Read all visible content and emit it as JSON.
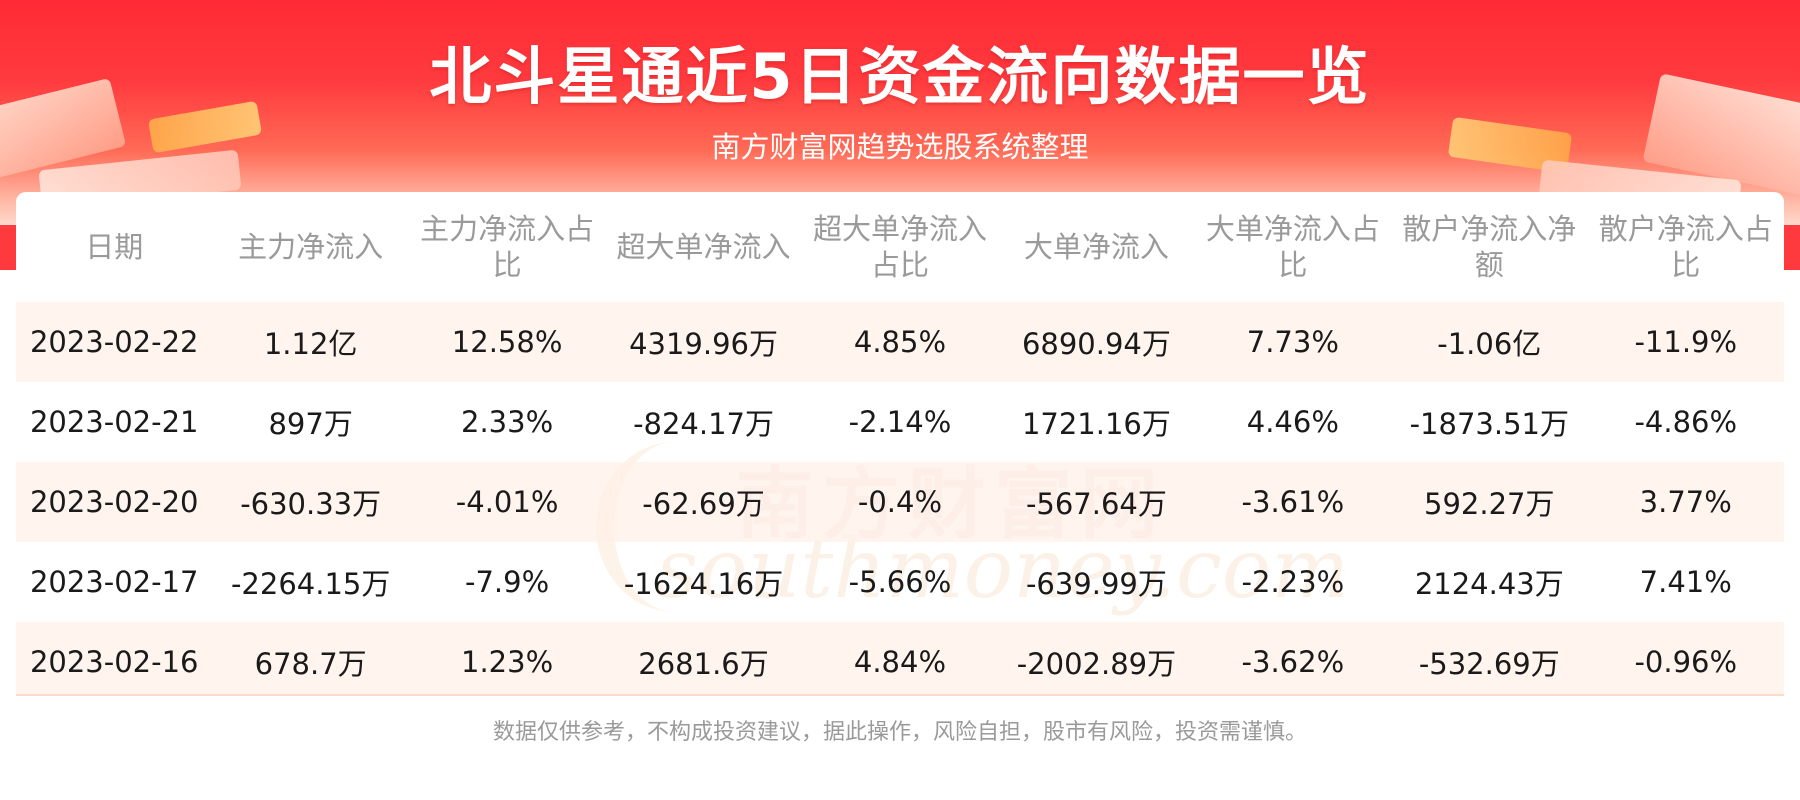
{
  "header": {
    "title": "北斗星通近5日资金流向数据一览",
    "subtitle": "南方财富网趋势选股系统整理"
  },
  "table": {
    "columns": [
      "日期",
      "主力净流入",
      "主力净流入占比",
      "超大单净流入",
      "超大单净流入占比",
      "大单净流入",
      "大单净流入占比",
      "散户净流入净额",
      "散户净流入占比"
    ],
    "rows": [
      [
        "2023-02-22",
        "1.12亿",
        "12.58%",
        "4319.96万",
        "4.85%",
        "6890.94万",
        "7.73%",
        "-1.06亿",
        "-11.9%"
      ],
      [
        "2023-02-21",
        "897万",
        "2.33%",
        "-824.17万",
        "-2.14%",
        "1721.16万",
        "4.46%",
        "-1873.51万",
        "-4.86%"
      ],
      [
        "2023-02-20",
        "-630.33万",
        "-4.01%",
        "-62.69万",
        "-0.4%",
        "-567.64万",
        "-3.61%",
        "592.27万",
        "3.77%"
      ],
      [
        "2023-02-17",
        "-2264.15万",
        "-7.9%",
        "-1624.16万",
        "-5.66%",
        "-639.99万",
        "-2.23%",
        "2124.43万",
        "7.41%"
      ],
      [
        "2023-02-16",
        "678.7万",
        "1.23%",
        "2681.6万",
        "4.84%",
        "-2002.89万",
        "-3.62%",
        "-532.69万",
        "-0.96%"
      ]
    ]
  },
  "watermark": {
    "cn": "南方财富网",
    "en": "southmoney.com"
  },
  "footer": {
    "disclaimer": "数据仅供参考，不构成投资建议，据此操作，风险自担，股市有风险，投资需谨慎。"
  },
  "colors": {
    "banner_red": "#ff2a35",
    "row_stripe": "#fff0e8",
    "header_text": "#9a9a9a"
  }
}
